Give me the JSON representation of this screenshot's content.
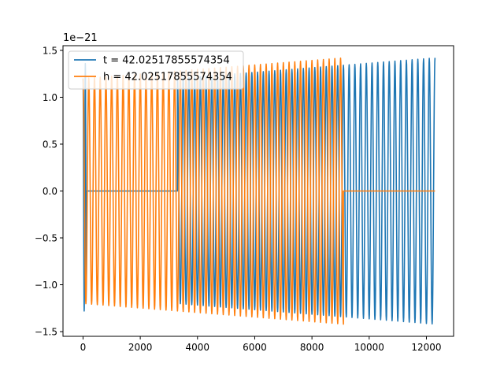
{
  "chart_data": {
    "type": "line",
    "title": "",
    "xlabel": "",
    "ylabel": "",
    "y_offset_label": "1e−21",
    "xlim": [
      -700,
      12950
    ],
    "ylim": [
      -1.55,
      1.55
    ],
    "x_ticks": [
      0,
      2000,
      4000,
      6000,
      8000,
      10000,
      12000
    ],
    "x_tick_labels": [
      "0",
      "2000",
      "4000",
      "6000",
      "8000",
      "10000",
      "12000"
    ],
    "y_ticks": [
      -1.5,
      -1.0,
      -0.5,
      0.0,
      0.5,
      1.0,
      1.5
    ],
    "y_tick_labels": [
      "−1.5",
      "−1.0",
      "−0.5",
      "0.0",
      "0.5",
      "1.0",
      "1.5"
    ],
    "grid": false,
    "legend_position": "top-left",
    "series": [
      {
        "name": "t = 42.02517855574354",
        "color": "#1f77b4",
        "segments": [
          {
            "kind": "oscillation",
            "x_start": 0,
            "x_end": 110,
            "amp_start": 1.2,
            "amp_end": 1.42,
            "period": 80
          },
          {
            "kind": "flat",
            "x_start": 110,
            "x_end": 3300,
            "value": 0.0
          },
          {
            "kind": "oscillation",
            "x_start": 3300,
            "x_end": 12300,
            "amp_start": 1.2,
            "amp_end": 1.42,
            "period": 200
          }
        ]
      },
      {
        "name": "h = 42.02517855574354",
        "color": "#ff7f0e",
        "segments": [
          {
            "kind": "oscillation",
            "x_start": 0,
            "x_end": 9100,
            "amp_start": 1.2,
            "amp_end": 1.42,
            "period": 200
          },
          {
            "kind": "flat",
            "x_start": 9100,
            "x_end": 12300,
            "value": 0.0
          }
        ]
      }
    ]
  }
}
